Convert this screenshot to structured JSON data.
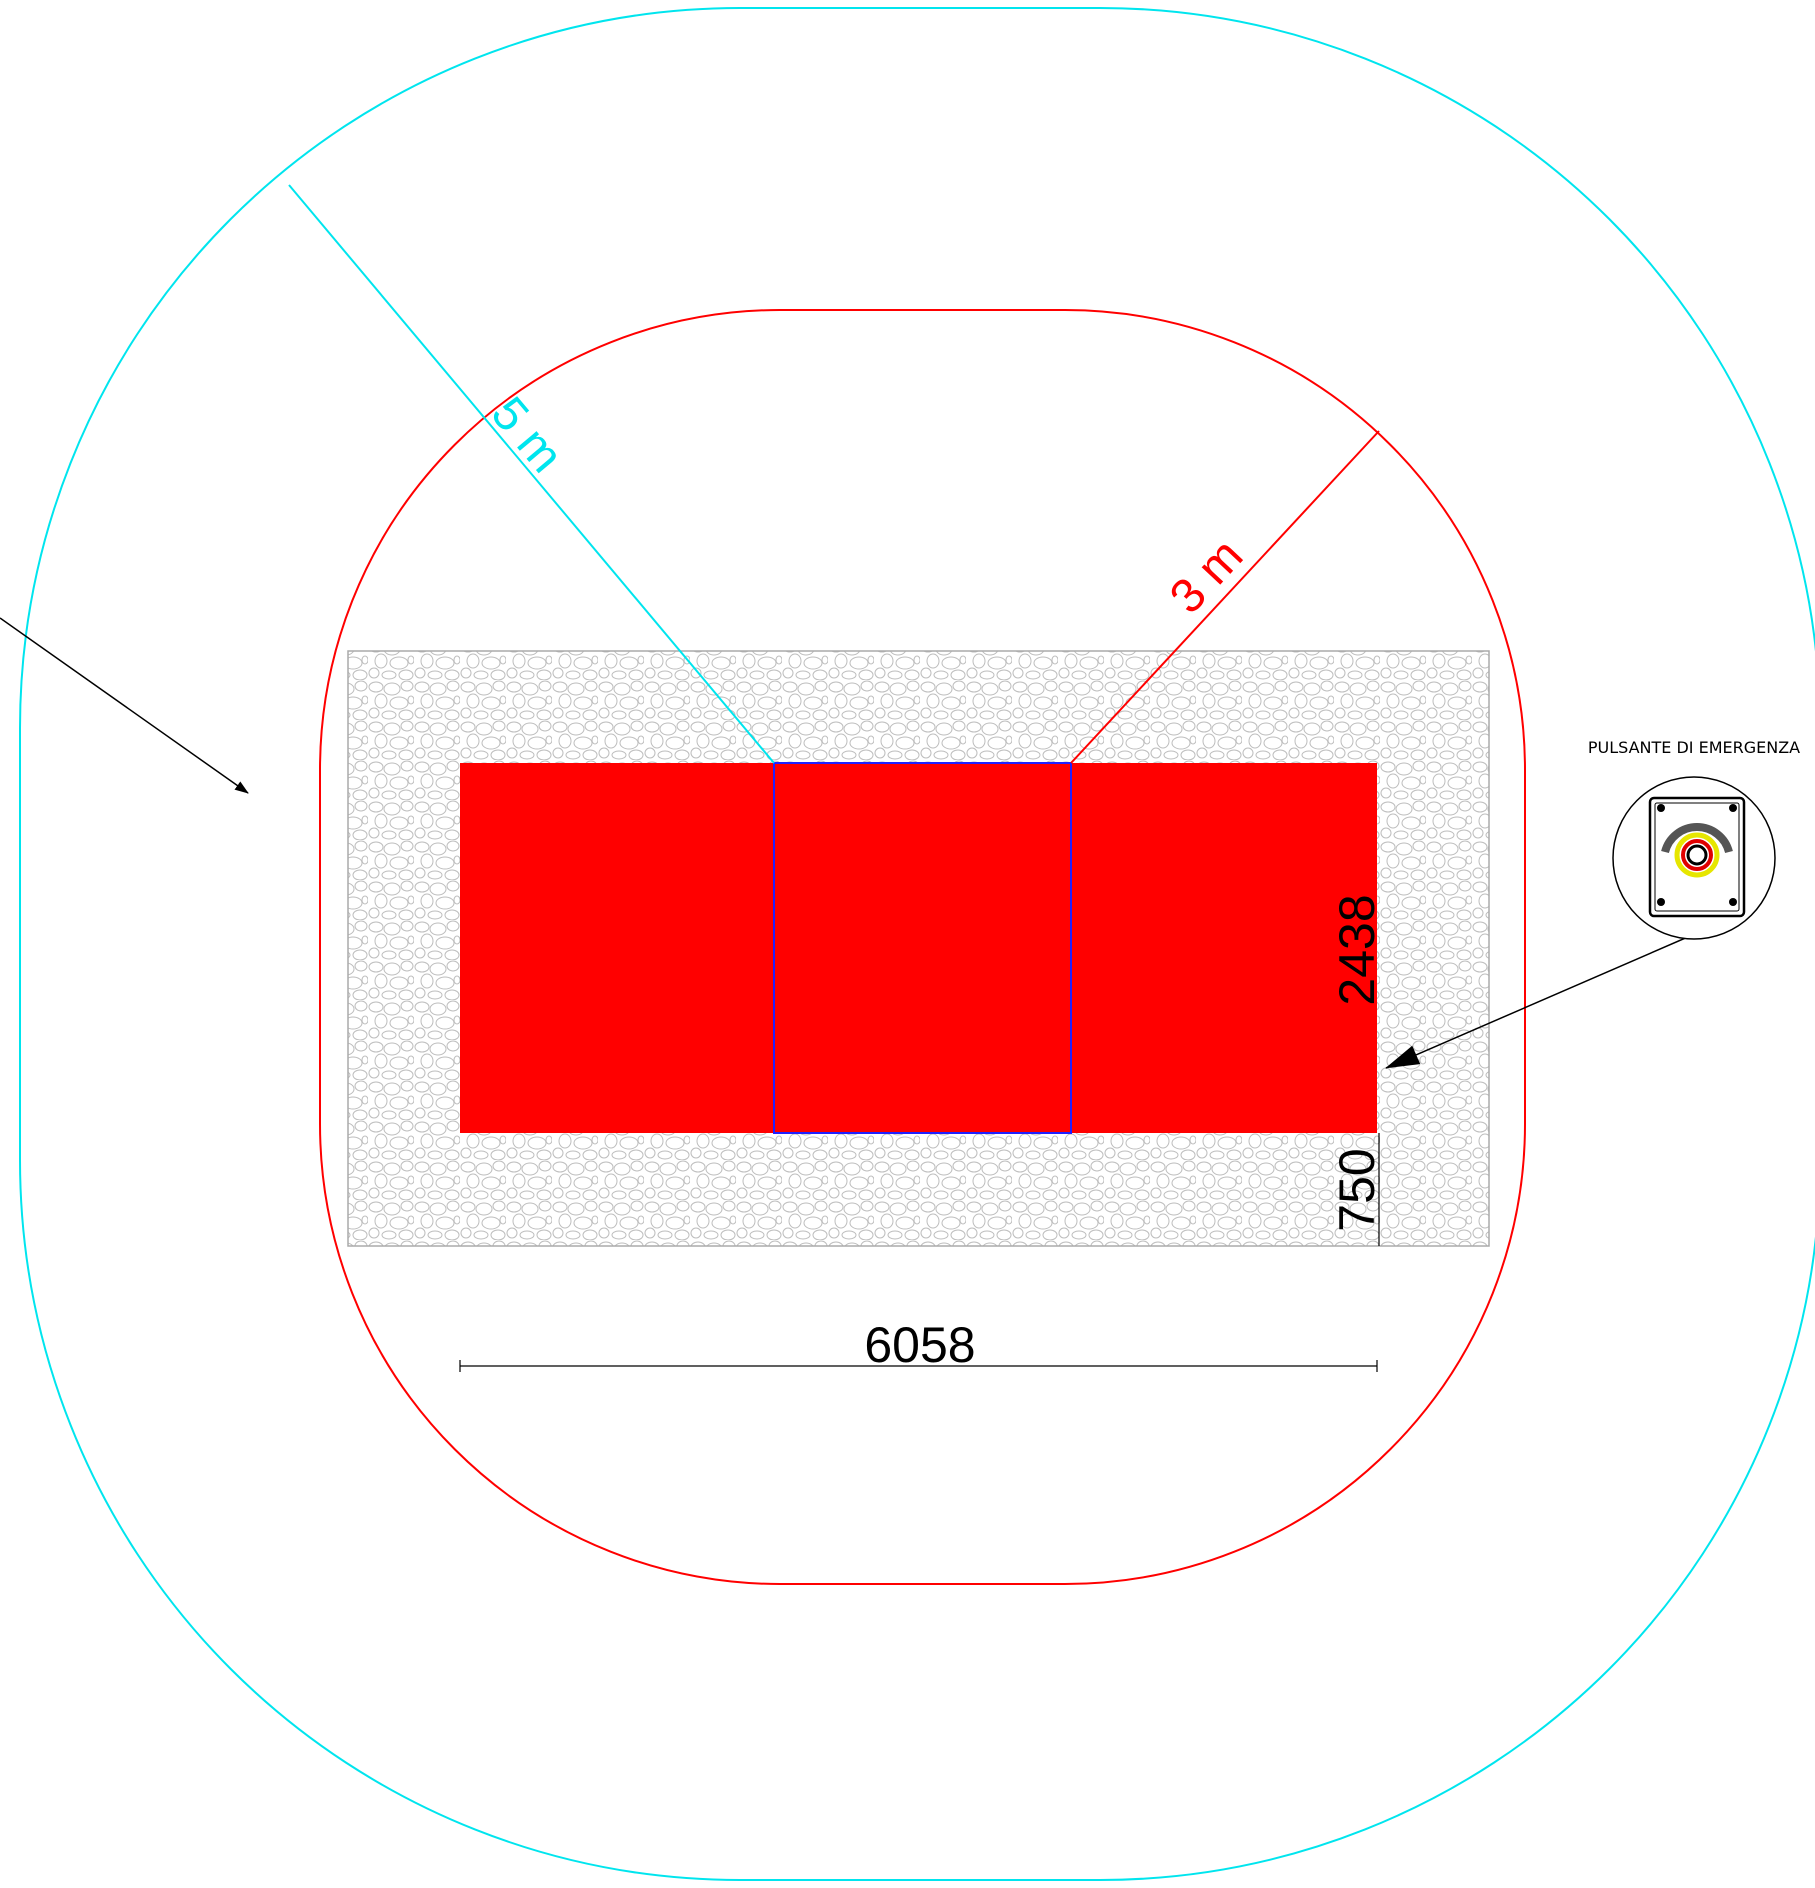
{
  "zones": {
    "outer_radius_label": "5 m",
    "inner_radius_label": "3 m"
  },
  "dimensions": {
    "length": "6058",
    "width": "2438",
    "gravel_margin": "750"
  },
  "emergency_button": {
    "label": "PULSANTE DI EMERGENZA",
    "icon": "emergency-stop-button-icon"
  },
  "colors": {
    "outer_zone": "#00e5ee",
    "inner_zone": "#ff0000",
    "container": "#ff0000",
    "door_outline": "#2020ff",
    "gravel": "#c8c8c8"
  }
}
